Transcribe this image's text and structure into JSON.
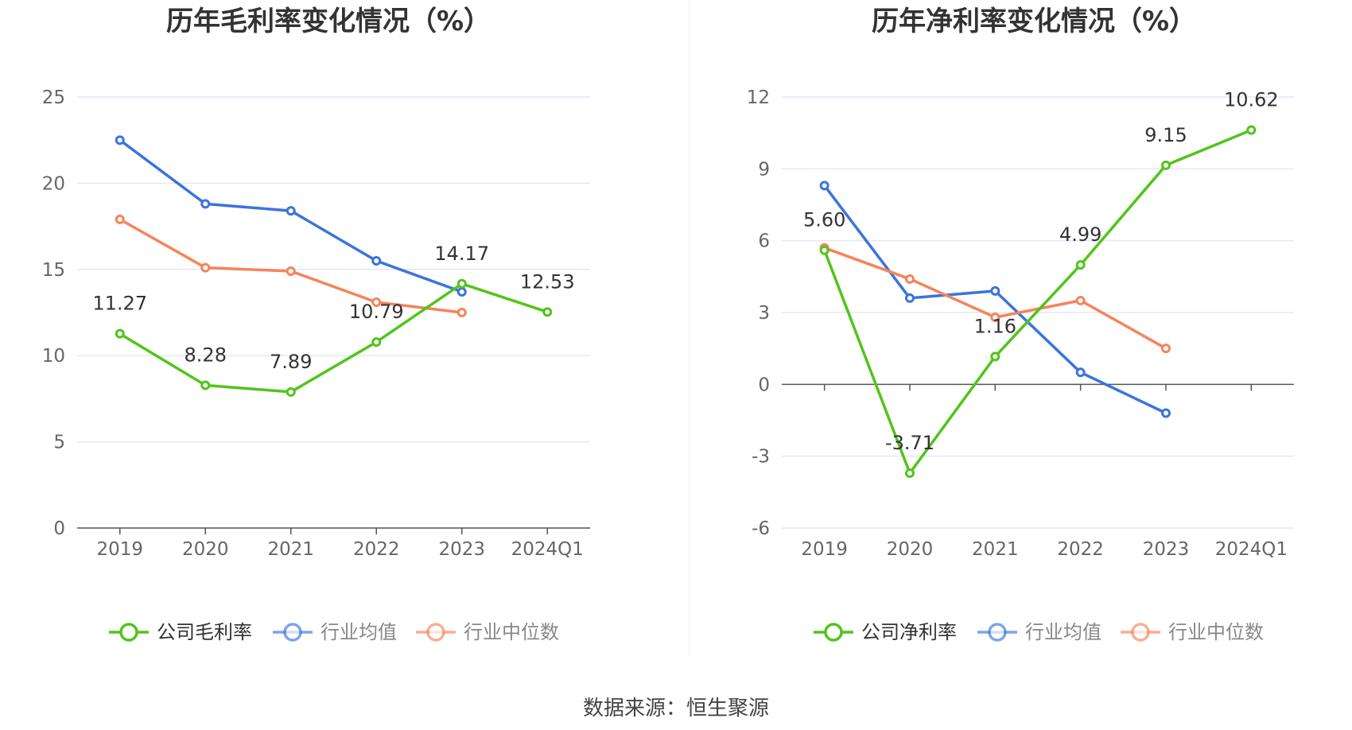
{
  "source": "数据来源：恒生聚源",
  "chart_data": [
    {
      "type": "line",
      "title": "历年毛利率变化情况（%）",
      "categories": [
        "2019",
        "2020",
        "2021",
        "2022",
        "2023",
        "2024Q1"
      ],
      "ylim": [
        0,
        25
      ],
      "yticks": [
        0,
        5,
        10,
        15,
        20,
        25
      ],
      "grid": true,
      "legend_position": "bottom",
      "series": [
        {
          "name": "公司毛利率",
          "color": "#52c41a",
          "labeled": true,
          "values": [
            11.27,
            8.28,
            7.89,
            10.79,
            14.17,
            12.53
          ]
        },
        {
          "name": "行业均值",
          "color": "#3b74dc",
          "labeled": false,
          "values": [
            22.5,
            18.8,
            18.4,
            15.5,
            13.7,
            null
          ]
        },
        {
          "name": "行业中位数",
          "color": "#f5845b",
          "labeled": false,
          "values": [
            17.9,
            15.1,
            14.9,
            13.1,
            12.5,
            null
          ]
        }
      ]
    },
    {
      "type": "line",
      "title": "历年净利率变化情况（%）",
      "categories": [
        "2019",
        "2020",
        "2021",
        "2022",
        "2023",
        "2024Q1"
      ],
      "ylim": [
        -6,
        12
      ],
      "yticks": [
        -6,
        -3,
        0,
        3,
        6,
        9,
        12
      ],
      "grid": true,
      "legend_position": "bottom",
      "series": [
        {
          "name": "公司净利率",
          "color": "#52c41a",
          "labeled": true,
          "values": [
            5.6,
            -3.71,
            1.16,
            4.99,
            9.15,
            10.62
          ]
        },
        {
          "name": "行业均值",
          "color": "#3b74dc",
          "labeled": false,
          "values": [
            8.3,
            3.6,
            3.9,
            0.5,
            -1.2,
            null
          ]
        },
        {
          "name": "行业中位数",
          "color": "#f5845b",
          "labeled": false,
          "values": [
            5.7,
            4.4,
            2.8,
            3.5,
            1.5,
            null
          ]
        }
      ]
    }
  ]
}
